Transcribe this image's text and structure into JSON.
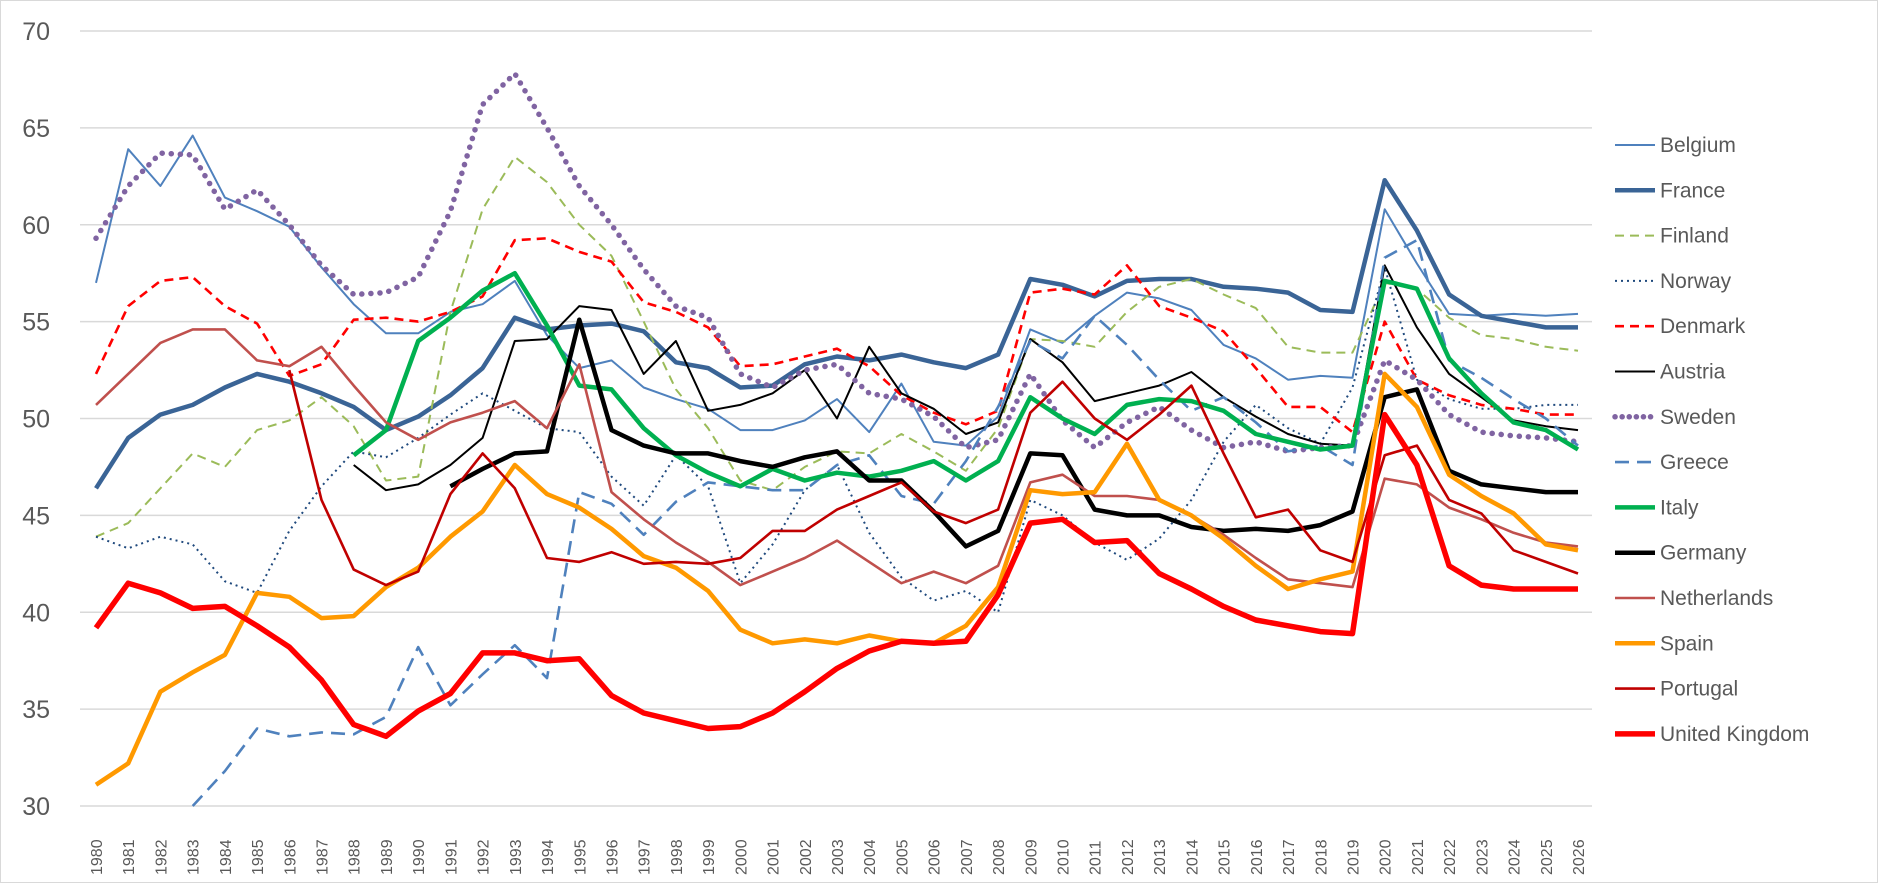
{
  "chart_data": {
    "type": "line",
    "title": "",
    "xlabel": "",
    "ylabel": "",
    "ylim": [
      30,
      70
    ],
    "yticks": [
      30,
      35,
      40,
      45,
      50,
      55,
      60,
      65,
      70
    ],
    "grid": "horizontal",
    "legend_placement": "right",
    "x": [
      1980,
      1981,
      1982,
      1983,
      1984,
      1985,
      1986,
      1987,
      1988,
      1989,
      1990,
      1991,
      1992,
      1993,
      1994,
      1995,
      1996,
      1997,
      1998,
      1999,
      2000,
      2001,
      2002,
      2003,
      2004,
      2005,
      2006,
      2007,
      2008,
      2009,
      2010,
      2011,
      2012,
      2013,
      2014,
      2015,
      2016,
      2017,
      2018,
      2019,
      2020,
      2021,
      2022,
      2023,
      2024,
      2025,
      2026
    ],
    "series": [
      {
        "name": "Belgium",
        "color": "#4f81bd",
        "style": "solid",
        "weight": "thin",
        "values": [
          57.0,
          63.9,
          62.0,
          64.6,
          61.4,
          60.7,
          59.9,
          57.8,
          55.9,
          54.4,
          54.4,
          55.5,
          55.9,
          57.1,
          54.3,
          52.6,
          53.0,
          51.6,
          51.0,
          50.5,
          49.4,
          49.4,
          49.9,
          51.0,
          49.3,
          51.8,
          48.8,
          48.6,
          50.1,
          54.6,
          53.9,
          55.3,
          56.5,
          56.2,
          55.6,
          53.8,
          53.1,
          52.0,
          52.2,
          52.1,
          60.8,
          58.0,
          55.4,
          55.3,
          55.4,
          55.3,
          55.4
        ]
      },
      {
        "name": "France",
        "color": "#3a6496",
        "style": "solid",
        "weight": "thick",
        "values": [
          46.4,
          49.0,
          50.2,
          50.7,
          51.6,
          52.3,
          51.9,
          51.3,
          50.6,
          49.4,
          50.1,
          51.2,
          52.6,
          55.2,
          54.6,
          54.8,
          54.9,
          54.5,
          52.9,
          52.6,
          51.6,
          51.7,
          52.8,
          53.2,
          53.0,
          53.3,
          52.9,
          52.6,
          53.3,
          57.2,
          56.9,
          56.3,
          57.1,
          57.2,
          57.2,
          56.8,
          56.7,
          56.5,
          55.6,
          55.5,
          62.3,
          59.7,
          56.4,
          55.3,
          55.0,
          54.7,
          54.7
        ]
      },
      {
        "name": "Finland",
        "color": "#9bbb59",
        "style": "dashed",
        "weight": "thin",
        "values": [
          43.9,
          44.6,
          46.4,
          48.2,
          47.5,
          49.4,
          49.9,
          51.1,
          49.6,
          46.8,
          47.0,
          55.5,
          60.8,
          63.5,
          62.2,
          60.0,
          58.4,
          55.0,
          51.5,
          49.5,
          46.8,
          46.3,
          47.5,
          48.3,
          48.2,
          49.2,
          48.3,
          47.3,
          49.5,
          54.1,
          54.0,
          53.7,
          55.5,
          56.8,
          57.2,
          56.4,
          55.7,
          53.7,
          53.4,
          53.4,
          57.0,
          56.7,
          55.2,
          54.3,
          54.1,
          53.7,
          53.5
        ]
      },
      {
        "name": "Norway",
        "color": "#1f497d",
        "style": "dotted",
        "weight": "thin",
        "values": [
          43.9,
          43.3,
          43.9,
          43.5,
          41.6,
          41.0,
          44.2,
          46.5,
          48.3,
          48.0,
          49.0,
          50.2,
          51.3,
          50.4,
          49.5,
          49.3,
          47.0,
          45.5,
          48.1,
          46.5,
          41.5,
          43.5,
          46.3,
          47.6,
          44.1,
          41.8,
          40.6,
          41.1,
          40.0,
          45.8,
          45.0,
          43.6,
          42.7,
          43.8,
          45.8,
          48.8,
          50.7,
          49.5,
          48.7,
          51.6,
          57.8,
          52.0,
          51.0,
          50.5,
          50.5,
          50.7,
          50.7
        ]
      },
      {
        "name": "Denmark",
        "color": "#ff0000",
        "style": "dashed",
        "weight": "medium",
        "values": [
          52.3,
          55.8,
          57.1,
          57.3,
          55.8,
          54.9,
          52.2,
          52.8,
          55.1,
          55.2,
          55.0,
          55.5,
          56.3,
          59.2,
          59.3,
          58.6,
          58.1,
          56.0,
          55.5,
          54.7,
          52.7,
          52.8,
          53.2,
          53.6,
          52.7,
          51.2,
          50.3,
          49.7,
          50.4,
          56.5,
          56.7,
          56.4,
          57.9,
          55.8,
          55.2,
          54.5,
          52.6,
          50.6,
          50.6,
          49.3,
          55.0,
          52.0,
          51.2,
          50.7,
          50.5,
          50.2,
          50.2
        ]
      },
      {
        "name": "Austria",
        "color": "#000000",
        "style": "solid",
        "weight": "thin",
        "values": [
          null,
          null,
          null,
          null,
          null,
          null,
          null,
          null,
          47.6,
          46.3,
          46.6,
          47.6,
          49.0,
          54.0,
          54.1,
          55.8,
          55.6,
          52.3,
          54.0,
          50.4,
          50.7,
          51.3,
          52.5,
          50.0,
          53.7,
          51.3,
          50.5,
          49.2,
          49.8,
          54.1,
          52.9,
          50.9,
          51.3,
          51.7,
          52.4,
          51.1,
          50.1,
          49.2,
          48.7,
          48.6,
          57.9,
          54.7,
          52.3,
          51.1,
          49.9,
          49.6,
          49.4
        ]
      },
      {
        "name": "Sweden",
        "color": "#8064a2",
        "style": "dotted-round",
        "weight": "thick",
        "values": [
          59.3,
          62.0,
          63.7,
          63.6,
          60.8,
          61.8,
          60.0,
          57.9,
          56.4,
          56.5,
          57.3,
          60.7,
          66.2,
          67.8,
          65.0,
          62.0,
          60.0,
          57.7,
          55.8,
          55.2,
          52.3,
          51.6,
          52.5,
          52.8,
          51.3,
          51.0,
          50.1,
          48.5,
          48.9,
          52.3,
          49.9,
          48.5,
          49.8,
          50.6,
          49.4,
          48.5,
          48.8,
          48.3,
          48.5,
          48.6,
          53.0,
          52.0,
          50.2,
          49.3,
          49.1,
          49.0,
          48.8
        ]
      },
      {
        "name": "Greece",
        "color": "#4f81bd",
        "style": "long-dashed",
        "weight": "medium",
        "values": [
          null,
          null,
          null,
          30.0,
          31.8,
          34.0,
          33.6,
          33.8,
          33.7,
          34.6,
          38.2,
          35.2,
          36.8,
          38.3,
          36.6,
          46.2,
          45.6,
          44.0,
          45.7,
          46.7,
          46.5,
          46.3,
          46.3,
          47.6,
          48.1,
          46.0,
          45.6,
          47.8,
          50.6,
          54.0,
          53.1,
          55.3,
          53.8,
          52.0,
          50.4,
          51.1,
          49.8,
          48.3,
          48.6,
          47.6,
          58.3,
          59.2,
          53.0,
          52.1,
          51.0,
          50.0,
          48.6
        ]
      },
      {
        "name": "Italy",
        "color": "#00b050",
        "style": "solid",
        "weight": "thick",
        "values": [
          null,
          null,
          null,
          null,
          null,
          null,
          null,
          null,
          48.1,
          49.4,
          54.0,
          55.2,
          56.6,
          57.5,
          54.8,
          51.7,
          51.5,
          49.5,
          48.1,
          47.2,
          46.5,
          47.4,
          46.8,
          47.2,
          47.0,
          47.3,
          47.8,
          46.8,
          47.8,
          51.1,
          50.0,
          49.2,
          50.7,
          51.0,
          50.9,
          50.4,
          49.2,
          48.8,
          48.4,
          48.6,
          57.1,
          56.7,
          53.1,
          51.3,
          49.8,
          49.4,
          48.4
        ]
      },
      {
        "name": "Germany",
        "color": "#000000",
        "style": "solid",
        "weight": "thick",
        "values": [
          null,
          null,
          null,
          null,
          null,
          null,
          null,
          null,
          null,
          null,
          null,
          46.5,
          47.4,
          48.2,
          48.3,
          55.1,
          49.4,
          48.6,
          48.2,
          48.2,
          47.8,
          47.5,
          48.0,
          48.3,
          46.8,
          46.8,
          45.2,
          43.4,
          44.2,
          48.2,
          48.1,
          45.3,
          45.0,
          45.0,
          44.4,
          44.2,
          44.3,
          44.2,
          44.5,
          45.2,
          51.1,
          51.5,
          47.3,
          46.6,
          46.4,
          46.2,
          46.2
        ]
      },
      {
        "name": "Netherlands",
        "color": "#c0504d",
        "style": "solid",
        "weight": "medium",
        "values": [
          50.7,
          52.3,
          53.9,
          54.6,
          54.6,
          53.0,
          52.7,
          53.7,
          51.7,
          49.8,
          48.9,
          49.8,
          50.3,
          50.9,
          49.5,
          52.8,
          46.2,
          44.8,
          43.6,
          42.6,
          41.4,
          42.1,
          42.8,
          43.7,
          42.6,
          41.5,
          42.1,
          41.5,
          42.4,
          46.7,
          47.1,
          46.0,
          46.0,
          45.8,
          45.0,
          44.0,
          42.8,
          41.7,
          41.5,
          41.3,
          46.9,
          46.6,
          45.4,
          44.8,
          44.1,
          43.6,
          43.4
        ]
      },
      {
        "name": "Spain",
        "color": "#ff9900",
        "style": "solid",
        "weight": "thick",
        "values": [
          31.1,
          32.2,
          35.9,
          36.9,
          37.8,
          41.0,
          40.8,
          39.7,
          39.8,
          41.3,
          42.3,
          43.9,
          45.2,
          47.6,
          46.1,
          45.4,
          44.3,
          42.9,
          42.3,
          41.1,
          39.1,
          38.4,
          38.6,
          38.4,
          38.8,
          38.5,
          38.4,
          39.3,
          41.3,
          46.3,
          46.1,
          46.2,
          48.7,
          45.8,
          45.0,
          43.8,
          42.4,
          41.2,
          41.7,
          42.1,
          52.3,
          50.6,
          47.1,
          46.0,
          45.1,
          43.5,
          43.2
        ]
      },
      {
        "name": "Portugal",
        "color": "#c00000",
        "style": "solid",
        "weight": "medium",
        "values": [
          null,
          null,
          null,
          null,
          null,
          null,
          52.5,
          45.8,
          42.2,
          41.4,
          42.1,
          46.1,
          48.2,
          46.4,
          42.8,
          42.6,
          43.1,
          42.5,
          42.6,
          42.5,
          42.8,
          44.2,
          44.2,
          45.3,
          46.0,
          46.7,
          45.2,
          44.6,
          45.3,
          50.3,
          51.9,
          50.0,
          48.9,
          50.2,
          51.7,
          48.2,
          44.9,
          45.3,
          43.2,
          42.6,
          48.1,
          48.6,
          45.8,
          45.1,
          43.2,
          42.6,
          42.0
        ]
      },
      {
        "name": "United Kingdom",
        "color": "#ff0000",
        "style": "solid",
        "weight": "xthick",
        "values": [
          39.2,
          41.5,
          41.0,
          40.2,
          40.3,
          39.3,
          38.2,
          36.5,
          34.2,
          33.6,
          34.9,
          35.8,
          37.9,
          37.9,
          37.5,
          37.6,
          35.7,
          34.8,
          34.4,
          34.0,
          34.1,
          34.8,
          35.9,
          37.1,
          38.0,
          38.5,
          38.4,
          38.5,
          40.9,
          44.6,
          44.8,
          43.6,
          43.7,
          42.0,
          41.2,
          40.3,
          39.6,
          39.3,
          39.0,
          38.9,
          50.2,
          47.6,
          42.4,
          41.4,
          41.2,
          41.2,
          41.2
        ]
      }
    ]
  }
}
